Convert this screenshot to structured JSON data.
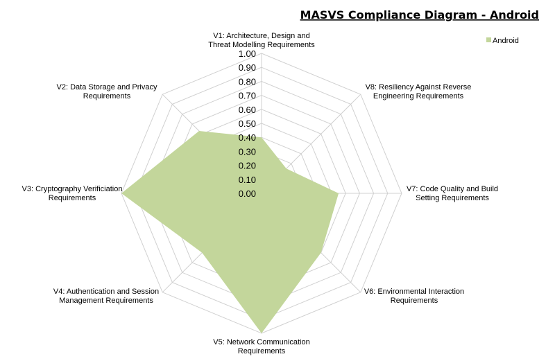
{
  "chart_data": {
    "type": "radar",
    "title": "MASVS Compliance Diagram - Android",
    "legend_position": "top-right",
    "categories": [
      "V1: Architecture, Design and Threat Modelling Requirements",
      "V8: Resiliency Against Reverse Engineering Requirements",
      "V7: Code Quality and Build Setting Requirements",
      "V6: Environmental Interaction Requirements",
      "V5: Network Communication Requirements",
      "V4: Authentication and Session Management Requirements",
      "V3: Cryptography Verificiation Requirements",
      "V2: Data Storage and Privacy Requirements"
    ],
    "category_lines": [
      [
        "V1: Architecture, Design and",
        "Threat Modelling Requirements"
      ],
      [
        "V8: Resiliency Against Reverse",
        "Engineering Requirements"
      ],
      [
        "V7: Code Quality and Build",
        "Setting Requirements"
      ],
      [
        "V6: Environmental Interaction",
        "Requirements"
      ],
      [
        "V5: Network Communication",
        "Requirements"
      ],
      [
        "V4: Authentication and Session",
        "Management Requirements"
      ],
      [
        "V3: Cryptography Verificiation",
        "Requirements"
      ],
      [
        "V2: Data Storage and Privacy",
        "Requirements"
      ]
    ],
    "series": [
      {
        "name": "Android",
        "color": "#c3d69b",
        "values": [
          0.4,
          0.25,
          0.55,
          0.6,
          1.0,
          0.6,
          1.0,
          0.63
        ]
      }
    ],
    "rlim": [
      0,
      1
    ],
    "ticks": [
      "0.00",
      "0.10",
      "0.20",
      "0.30",
      "0.40",
      "0.50",
      "0.60",
      "0.70",
      "0.80",
      "0.90",
      "1.00"
    ],
    "grid_color": "#d0d0d0",
    "grid": true
  }
}
